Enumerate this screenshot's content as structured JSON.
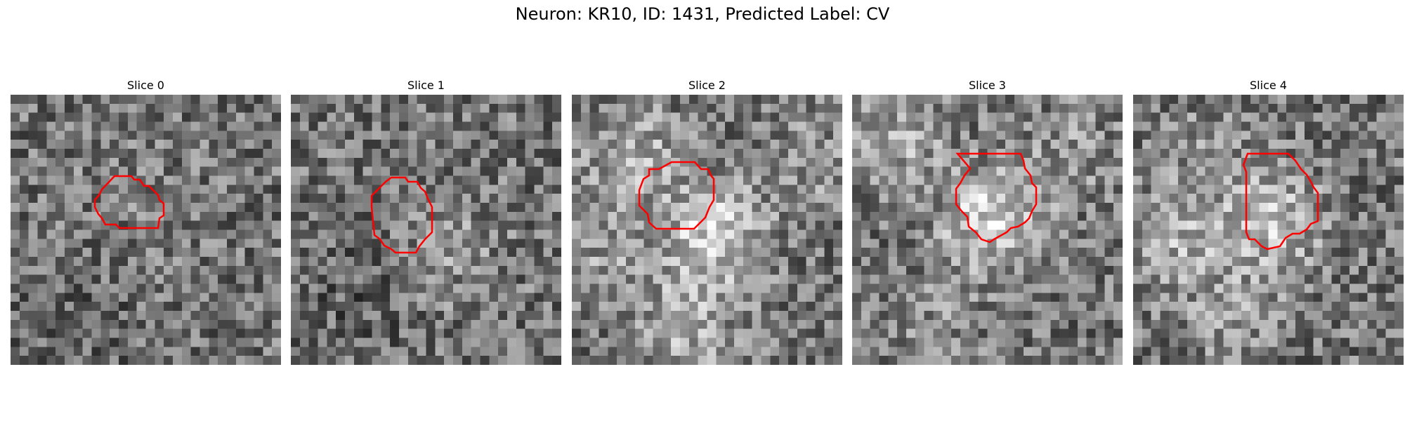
{
  "figure": {
    "title": "Neuron: KR10, ID: 1431, Predicted Label: CV"
  },
  "panels": [
    {
      "title": "Slice 0",
      "seed": 11,
      "blobs": [
        [
          0.4,
          0.35,
          0.5,
          0.5
        ],
        [
          0.2,
          0.8,
          0.35,
          0.6
        ]
      ]
    },
    {
      "title": "Slice 1",
      "seed": 23,
      "blobs": [
        [
          0.55,
          0.55,
          0.6,
          0.5
        ],
        [
          0.25,
          0.7,
          0.35,
          0.55
        ]
      ]
    },
    {
      "title": "Slice 2",
      "seed": 37,
      "blobs": [
        [
          0.5,
          0.5,
          0.85,
          0.45
        ],
        [
          0.2,
          0.2,
          0.7,
          0.45
        ],
        [
          0.85,
          0.25,
          0.6,
          0.4
        ],
        [
          0.4,
          0.85,
          0.7,
          0.45
        ],
        [
          0.1,
          0.6,
          0.6,
          0.35
        ]
      ]
    },
    {
      "title": "Slice 3",
      "seed": 51,
      "blobs": [
        [
          0.5,
          0.45,
          0.85,
          0.45
        ],
        [
          0.15,
          0.15,
          0.7,
          0.45
        ],
        [
          0.8,
          0.2,
          0.6,
          0.35
        ],
        [
          0.3,
          0.85,
          0.55,
          0.45
        ]
      ]
    },
    {
      "title": "Slice 4",
      "seed": 67,
      "blobs": [
        [
          0.5,
          0.45,
          0.8,
          0.45
        ],
        [
          0.15,
          0.5,
          0.7,
          0.45
        ],
        [
          0.35,
          0.8,
          0.6,
          0.45
        ],
        [
          0.25,
          0.15,
          0.55,
          0.4
        ]
      ]
    }
  ],
  "style": {
    "outline_color": "#ff0000"
  }
}
